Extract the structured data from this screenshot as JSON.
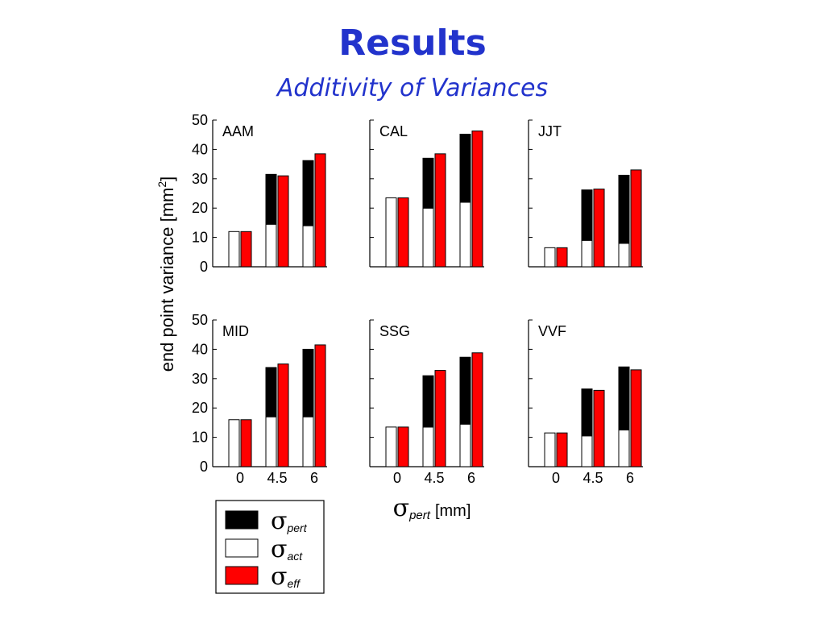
{
  "slide": {
    "title": "Results",
    "subtitle": "Additivity of Variances"
  },
  "colors": {
    "title": "#2233cc",
    "pert": "#000000",
    "act": "#ffffff",
    "eff": "#ff0000",
    "axis": "#000000"
  },
  "chart_data": {
    "type": "bar",
    "stacking": "act + pert stacked bar beside eff bar",
    "ylabel": "end point variance [mm",
    "ylabel_sup": "2",
    "ylabel_end": "]",
    "xlabel_symbol": "σ",
    "xlabel_sub": "pert",
    "xlabel_unit": "[mm]",
    "ylim": [
      0,
      50
    ],
    "yticks": [
      "50",
      "40",
      "30",
      "20",
      "10",
      "0"
    ],
    "categories": [
      "0",
      "4.5",
      "6"
    ],
    "legend": [
      {
        "symbol": "σ",
        "sub": "pert",
        "color": "#000000"
      },
      {
        "symbol": "σ",
        "sub": "act",
        "color": "#ffffff"
      },
      {
        "symbol": "σ",
        "sub": "eff",
        "color": "#ff0000"
      }
    ],
    "panels": [
      {
        "name": "AAM",
        "act": [
          12,
          14.5,
          14
        ],
        "total": [
          12,
          31.5,
          36.2
        ],
        "eff": [
          12,
          31,
          38.5
        ]
      },
      {
        "name": "CAL",
        "act": [
          23.5,
          20,
          22
        ],
        "total": [
          23.5,
          37,
          45.2
        ],
        "eff": [
          23.5,
          38.5,
          46.3
        ]
      },
      {
        "name": "JJT",
        "act": [
          6.5,
          9,
          8
        ],
        "total": [
          6.5,
          26.2,
          31.2
        ],
        "eff": [
          6.5,
          26.5,
          33
        ]
      },
      {
        "name": "MID",
        "act": [
          16,
          17,
          17
        ],
        "total": [
          16,
          33.8,
          40
        ],
        "eff": [
          16,
          35,
          41.5
        ]
      },
      {
        "name": "SSG",
        "act": [
          13.5,
          13.5,
          14.5
        ],
        "total": [
          13.5,
          31,
          37.3
        ],
        "eff": [
          13.5,
          32.8,
          38.8
        ]
      },
      {
        "name": "VVF",
        "act": [
          11.5,
          10.5,
          12.5
        ],
        "total": [
          11.5,
          26.5,
          34
        ],
        "eff": [
          11.5,
          26,
          33
        ]
      }
    ]
  }
}
